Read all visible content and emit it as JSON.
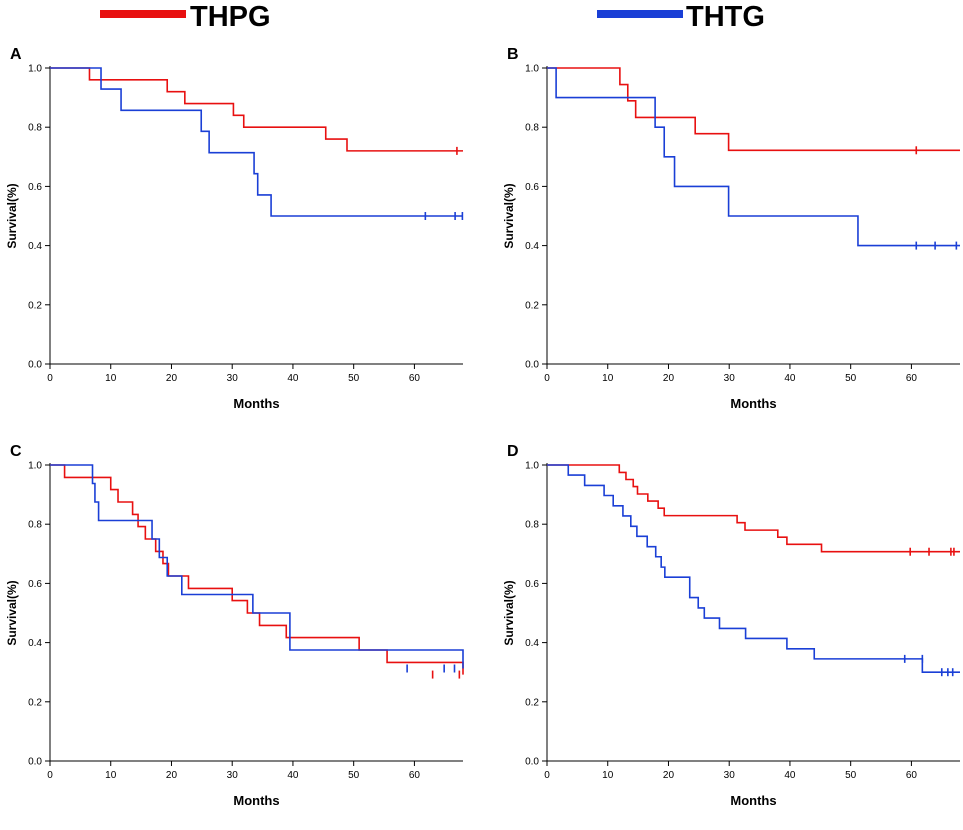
{
  "legend": [
    {
      "label": "THPG",
      "color": "#e81010"
    },
    {
      "label": "THTG",
      "color": "#1a3fd6"
    }
  ],
  "chart_data": [
    {
      "type": "line",
      "step": true,
      "panel": "A",
      "xlabel": "Months",
      "ylabel": "Survival(%)",
      "xlim": [
        0,
        68
      ],
      "ylim": [
        0,
        1.0
      ],
      "xticks": [
        "0",
        "10",
        "20",
        "30",
        "40",
        "50",
        "60"
      ],
      "yticks": [
        "0.0",
        "0.2",
        "0.4",
        "0.6",
        "0.8",
        "1.0"
      ],
      "series": [
        {
          "name": "THPG",
          "color": "#e81010",
          "x": [
            0,
            6.5,
            19.3,
            22.2,
            30.2,
            31.9,
            45.4,
            48.9,
            68
          ],
          "y": [
            1.0,
            0.96,
            0.92,
            0.88,
            0.84,
            0.8,
            0.76,
            0.72,
            0.72
          ],
          "censored": [
            [
              67,
              0.72
            ]
          ]
        },
        {
          "name": "THTG",
          "color": "#1a3fd6",
          "x": [
            0,
            7.1,
            8.4,
            11.7,
            24.9,
            26.2,
            33.6,
            34.2,
            36.4,
            68
          ],
          "y": [
            1.0,
            1.0,
            0.929,
            0.857,
            0.786,
            0.714,
            0.643,
            0.571,
            0.5,
            0.5
          ],
          "censored": [
            [
              61.8,
              0.5
            ],
            [
              66.7,
              0.5
            ],
            [
              67.9,
              0.5
            ]
          ]
        }
      ]
    },
    {
      "type": "line",
      "step": true,
      "panel": "B",
      "xlabel": "Months",
      "ylabel": "Survival(%)",
      "xlim": [
        0,
        68
      ],
      "ylim": [
        0,
        1.0
      ],
      "xticks": [
        "0",
        "10",
        "20",
        "30",
        "40",
        "50",
        "60"
      ],
      "yticks": [
        "0.0",
        "0.2",
        "0.4",
        "0.6",
        "0.8",
        "1.0"
      ],
      "series": [
        {
          "name": "THPG",
          "color": "#e81010",
          "x": [
            0,
            12.0,
            13.3,
            14.6,
            24.4,
            29.9,
            68
          ],
          "y": [
            1.0,
            0.944,
            0.889,
            0.833,
            0.778,
            0.722,
            0.722
          ],
          "censored": [
            [
              60.8,
              0.722
            ]
          ]
        },
        {
          "name": "THTG",
          "color": "#1a3fd6",
          "x": [
            0,
            1.5,
            17.8,
            19.3,
            21.0,
            29.9,
            51.2,
            68
          ],
          "y": [
            1.0,
            0.9,
            0.8,
            0.7,
            0.6,
            0.5,
            0.4,
            0.4
          ],
          "censored": [
            [
              60.8,
              0.4
            ],
            [
              63.9,
              0.4
            ],
            [
              67.4,
              0.4
            ]
          ]
        }
      ]
    },
    {
      "type": "line",
      "step": true,
      "panel": "C",
      "xlabel": "Months",
      "ylabel": "Survival(%)",
      "xlim": [
        0,
        68
      ],
      "ylim": [
        0,
        1.0
      ],
      "xticks": [
        "0",
        "10",
        "20",
        "30",
        "40",
        "50",
        "60"
      ],
      "yticks": [
        "0.0",
        "0.2",
        "0.4",
        "0.6",
        "0.8",
        "1.0"
      ],
      "series": [
        {
          "name": "THPG",
          "color": "#e81010",
          "x": [
            0,
            2.4,
            10.0,
            11.2,
            13.6,
            14.5,
            15.7,
            17.4,
            18.6,
            19.5,
            22.8,
            30.0,
            32.5,
            34.5,
            38.9,
            50.9,
            55.5,
            68
          ],
          "y": [
            1.0,
            0.958,
            0.917,
            0.875,
            0.833,
            0.792,
            0.75,
            0.708,
            0.667,
            0.625,
            0.583,
            0.542,
            0.5,
            0.458,
            0.417,
            0.375,
            0.333,
            0.292
          ],
          "censored": [
            [
              63.0,
              0.292
            ],
            [
              67.4,
              0.292
            ]
          ]
        },
        {
          "name": "THTG",
          "color": "#1a3fd6",
          "x": [
            0,
            7.0,
            7.4,
            8.0,
            16.8,
            18.0,
            19.3,
            21.7,
            33.4,
            39.5,
            68
          ],
          "y": [
            1.0,
            0.9375,
            0.875,
            0.8125,
            0.75,
            0.6875,
            0.625,
            0.5625,
            0.5,
            0.375,
            0.3125
          ],
          "censored": [
            [
              58.8,
              0.3125
            ],
            [
              64.9,
              0.3125
            ],
            [
              66.6,
              0.3125
            ]
          ]
        }
      ]
    },
    {
      "type": "line",
      "step": true,
      "panel": "D",
      "xlabel": "Months",
      "ylabel": "Survival(%)",
      "xlim": [
        0,
        68
      ],
      "ylim": [
        0,
        1.0
      ],
      "xticks": [
        "0",
        "10",
        "20",
        "30",
        "40",
        "50",
        "60"
      ],
      "yticks": [
        "0.0",
        "0.2",
        "0.4",
        "0.6",
        "0.8",
        "1.0"
      ],
      "series": [
        {
          "name": "THPG",
          "color": "#e81010",
          "x": [
            0,
            11.9,
            13.0,
            14.2,
            14.9,
            16.6,
            18.3,
            19.3,
            21.3,
            31.3,
            32.6,
            34.5,
            38.0,
            39.5,
            45.2,
            68
          ],
          "y": [
            1.0,
            0.975,
            0.951,
            0.927,
            0.902,
            0.878,
            0.854,
            0.829,
            0.829,
            0.805,
            0.78,
            0.78,
            0.756,
            0.732,
            0.707,
            0.707
          ],
          "censored": [
            [
              59.8,
              0.707
            ],
            [
              62.9,
              0.707
            ],
            [
              66.5,
              0.707
            ],
            [
              67.0,
              0.707
            ]
          ]
        },
        {
          "name": "THTG",
          "color": "#1a3fd6",
          "x": [
            0,
            3.5,
            6.2,
            9.4,
            10.9,
            12.5,
            13.8,
            14.8,
            15.9,
            16.5,
            17.9,
            18.8,
            19.4,
            19.8,
            23.5,
            24.9,
            25.9,
            28.4,
            32.7,
            39.5,
            44.0,
            61.8,
            68
          ],
          "y": [
            1.0,
            0.966,
            0.931,
            0.897,
            0.862,
            0.828,
            0.793,
            0.759,
            0.759,
            0.724,
            0.69,
            0.655,
            0.621,
            0.621,
            0.552,
            0.517,
            0.483,
            0.448,
            0.414,
            0.379,
            0.345,
            0.3,
            0.3
          ],
          "censored": [
            [
              58.9,
              0.345
            ],
            [
              61.8,
              0.345
            ],
            [
              65.0,
              0.3
            ],
            [
              66.0,
              0.3
            ],
            [
              66.8,
              0.3
            ]
          ]
        }
      ]
    }
  ]
}
